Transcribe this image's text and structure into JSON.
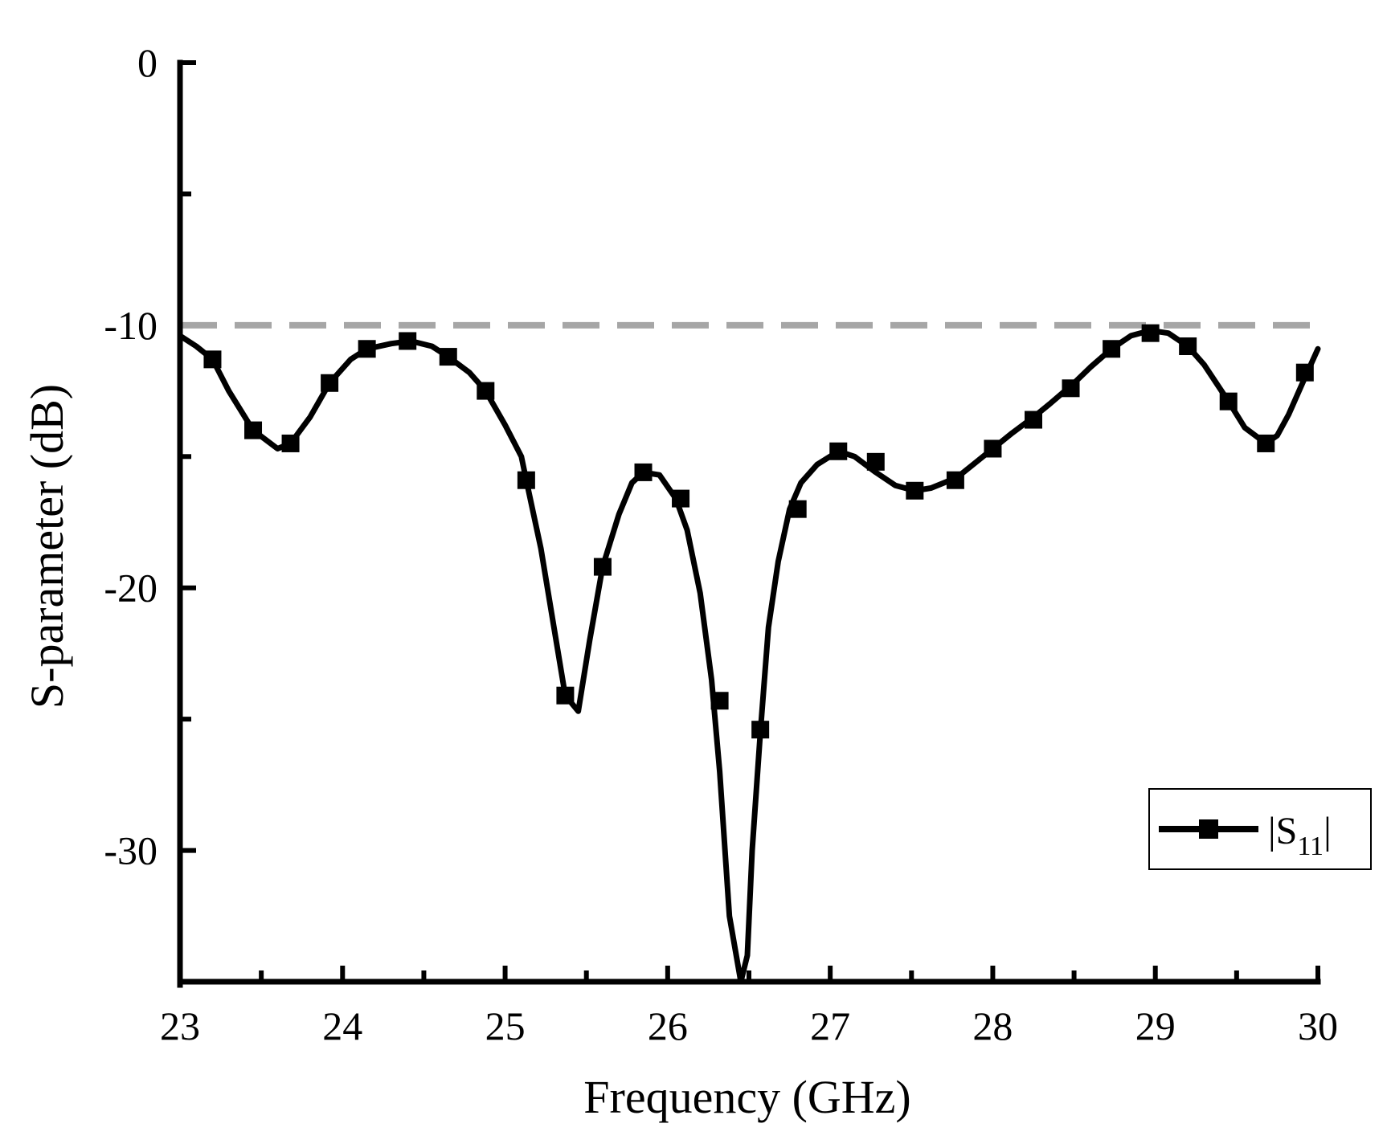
{
  "chart_data": {
    "type": "line",
    "title": "",
    "xlabel": "Frequency (GHz)",
    "ylabel": "S-parameter (dB)",
    "xlim": [
      23,
      30
    ],
    "ylim": [
      -35,
      0
    ],
    "xticks": [
      "23",
      "24",
      "25",
      "26",
      "27",
      "28",
      "29",
      "30"
    ],
    "yticks": [
      "0",
      "-10",
      "-20",
      "-30"
    ],
    "grid": false,
    "legend": {
      "placement": "bottom-right",
      "entries": [
        {
          "label": "|S",
          "subscript": "11",
          "suffix": "|"
        }
      ]
    },
    "reference_line": {
      "y": -10,
      "style": "dashed",
      "color": "#a6a6a6"
    },
    "series": [
      {
        "color": "#000000",
        "marker": "square",
        "x": [
          23.0,
          23.1,
          23.2,
          23.3,
          23.45,
          23.6,
          23.68,
          23.8,
          23.92,
          24.05,
          24.15,
          24.3,
          24.42,
          24.55,
          24.65,
          24.78,
          24.88,
          25.0,
          25.1,
          25.13,
          25.22,
          25.3,
          25.37,
          25.45,
          25.52,
          25.6,
          25.7,
          25.78,
          25.85,
          25.95,
          26.05,
          26.12,
          26.2,
          26.27,
          26.32,
          26.38,
          26.45,
          26.49,
          26.52,
          26.57,
          26.62,
          26.68,
          26.75,
          26.82,
          26.92,
          27.05,
          27.15,
          27.28,
          27.4,
          27.52,
          27.62,
          27.78,
          27.9,
          28.0,
          28.12,
          28.25,
          28.35,
          28.5,
          28.6,
          28.73,
          28.85,
          28.97,
          29.08,
          29.2,
          29.3,
          29.45,
          29.55,
          29.68,
          29.75,
          29.82,
          29.92,
          30.0
        ],
        "y": [
          -10.4,
          -10.8,
          -11.3,
          -12.5,
          -14.0,
          -14.7,
          -14.5,
          -13.5,
          -12.2,
          -11.3,
          -10.9,
          -10.7,
          -10.6,
          -10.8,
          -11.2,
          -11.8,
          -12.5,
          -13.8,
          -15.0,
          -15.9,
          -18.5,
          -21.5,
          -24.1,
          -24.7,
          -22.0,
          -19.2,
          -17.2,
          -16.0,
          -15.6,
          -15.7,
          -16.6,
          -17.8,
          -20.2,
          -23.5,
          -27.0,
          -32.5,
          -35.0,
          -34.0,
          -30.0,
          -25.5,
          -21.5,
          -19.0,
          -17.0,
          -16.0,
          -15.3,
          -14.8,
          -15.0,
          -15.6,
          -16.1,
          -16.3,
          -16.2,
          -15.8,
          -15.2,
          -14.7,
          -14.1,
          -13.5,
          -13.0,
          -12.2,
          -11.6,
          -10.9,
          -10.4,
          -10.2,
          -10.3,
          -10.8,
          -11.5,
          -12.9,
          -13.9,
          -14.5,
          -14.2,
          -13.4,
          -12.0,
          -10.9
        ],
        "marker_x": [
          23.2,
          23.45,
          23.68,
          23.92,
          24.15,
          24.4,
          24.65,
          24.88,
          25.13,
          25.37,
          25.6,
          25.85,
          26.08,
          26.32,
          26.57,
          26.8,
          27.05,
          27.28,
          27.52,
          27.77,
          28.0,
          28.25,
          28.48,
          28.73,
          28.97,
          29.2,
          29.45,
          29.68,
          29.92
        ],
        "marker_y": [
          -11.3,
          -14.0,
          -14.5,
          -12.2,
          -10.9,
          -10.6,
          -11.2,
          -12.5,
          -15.9,
          -24.1,
          -19.2,
          -15.6,
          -16.6,
          -24.3,
          -25.4,
          -17.0,
          -14.8,
          -15.2,
          -16.3,
          -15.9,
          -14.7,
          -13.6,
          -12.4,
          -10.9,
          -10.3,
          -10.8,
          -12.9,
          -14.5,
          -11.8
        ]
      }
    ]
  }
}
